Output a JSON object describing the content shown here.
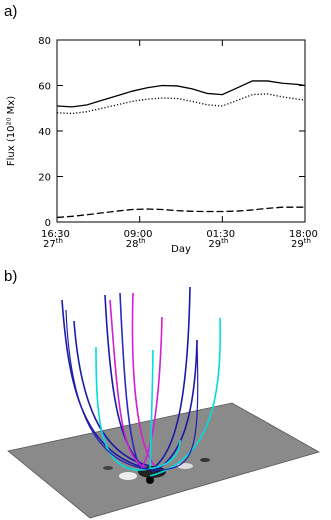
{
  "panel_labels": [
    "a)",
    "b)"
  ],
  "chart_data": {
    "type": "line",
    "x_label": "Day",
    "y_label": "Flux (10²⁰ Mx)",
    "x": [
      0,
      3,
      6,
      9,
      12,
      15,
      18,
      21,
      24,
      27,
      30,
      33,
      36,
      39,
      42,
      45,
      48,
      49.5
    ],
    "xlim": [
      0,
      49.5
    ],
    "xticks": [
      {
        "value": 0,
        "label": "16:30 27th"
      },
      {
        "value": 16.5,
        "label": "09:00 28th"
      },
      {
        "value": 33,
        "label": "01:30 29th"
      },
      {
        "value": 49.5,
        "label": "18:00 29th"
      }
    ],
    "ylim": [
      0,
      80
    ],
    "yticks": [
      0,
      20,
      40,
      60,
      80
    ],
    "series": [
      {
        "color": "#000000",
        "style": "solid",
        "values": [
          51,
          50.6,
          51.5,
          53.5,
          55.5,
          57.5,
          59,
          60,
          59.8,
          58.5,
          56.5,
          56,
          59,
          62,
          62,
          61,
          60.5,
          60
        ]
      },
      {
        "color": "#000000",
        "style": "dotted",
        "values": [
          48,
          47.7,
          48.5,
          50,
          51.5,
          53,
          54,
          54.5,
          54.3,
          53,
          51.5,
          51,
          53.5,
          56,
          56.3,
          55,
          54,
          53.5
        ]
      },
      {
        "color": "#000000",
        "style": "dashed",
        "values": [
          2,
          2.5,
          3.2,
          4,
          4.8,
          5.5,
          5.7,
          5.5,
          5,
          4.7,
          4.6,
          4.6,
          4.8,
          5.3,
          6,
          6.5,
          6.5,
          6.5
        ]
      }
    ]
  }
}
